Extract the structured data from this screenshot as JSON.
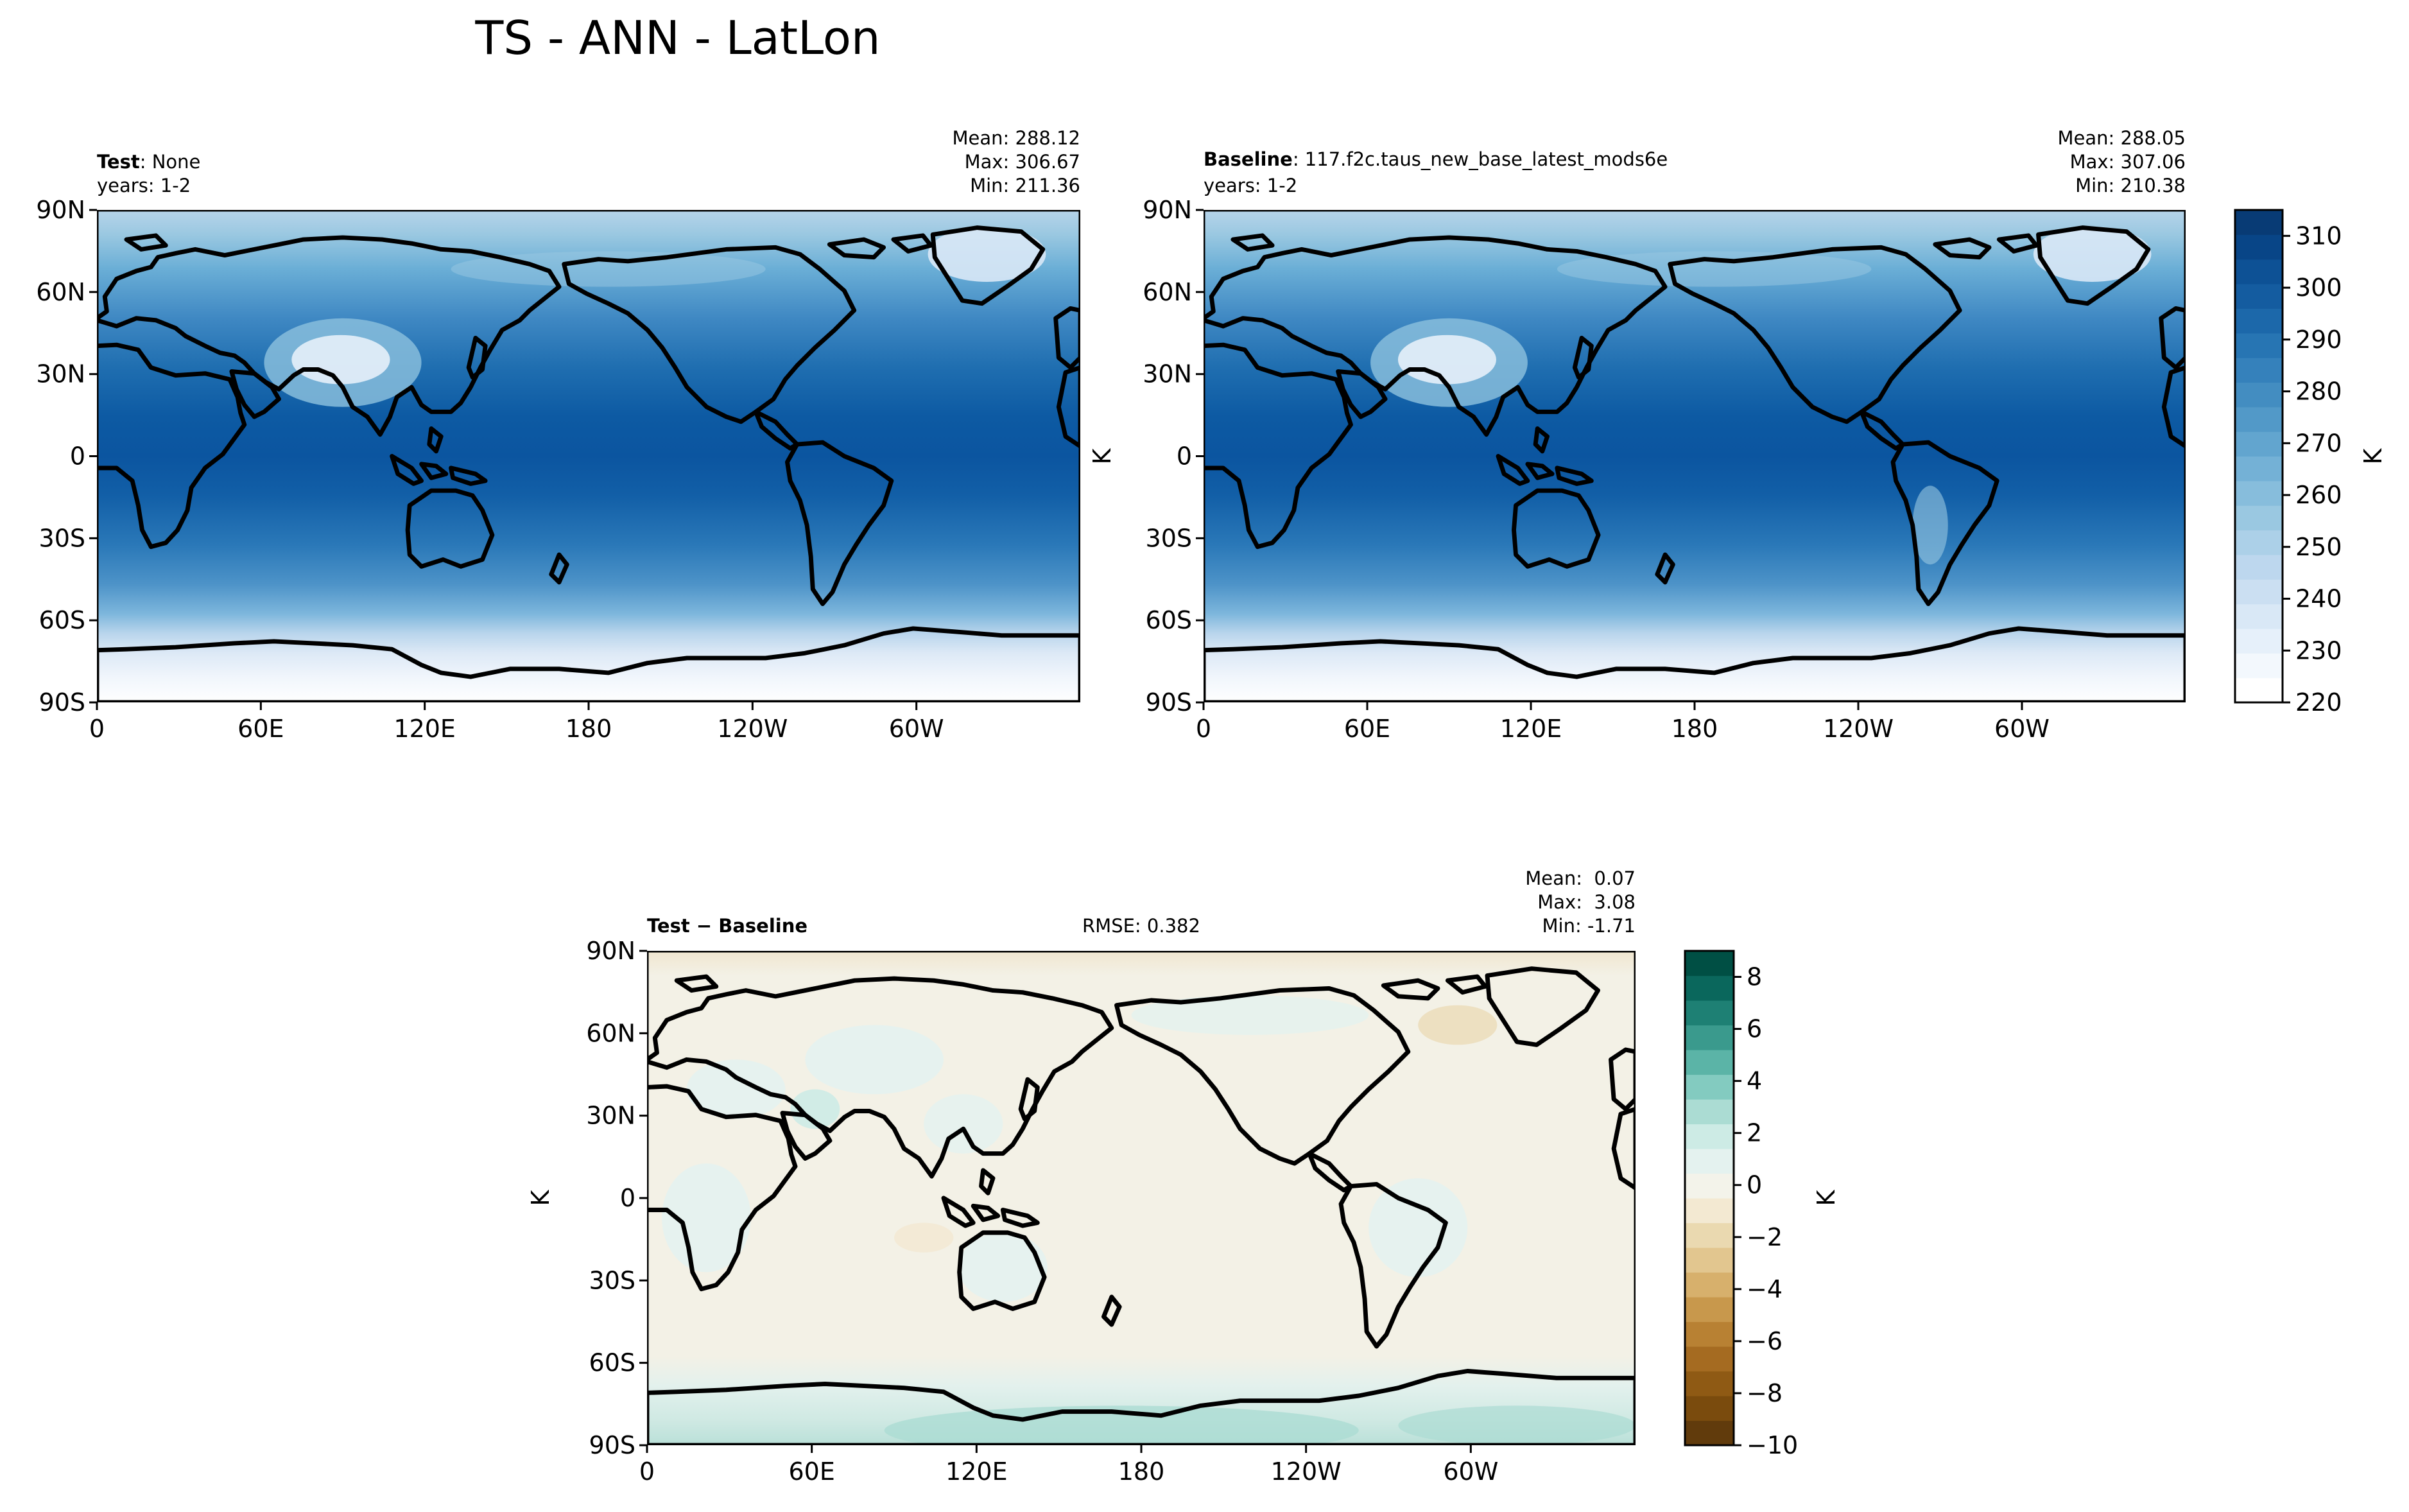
{
  "figure": {
    "suptitle": "TS - ANN - LatLon"
  },
  "chart_data": [
    {
      "type": "heatmap",
      "panel": "test",
      "title_bold": "Test",
      "title_rest": ": None",
      "subtitle": "years: 1-2",
      "stats": [
        "Mean: 288.12",
        "Max: 306.67",
        "Min: 211.36"
      ],
      "x_ticks": [
        "0",
        "60E",
        "120E",
        "180",
        "120W",
        "60W"
      ],
      "y_ticks": [
        "90N",
        "60N",
        "30N",
        "0",
        "30S",
        "60S",
        "90S"
      ],
      "xlim": [
        0,
        360
      ],
      "ylim": [
        -90,
        90
      ],
      "colormap": "Blues",
      "mean": 288.12,
      "max": 306.67,
      "min": 211.36
    },
    {
      "type": "heatmap",
      "panel": "baseline",
      "title_bold": "Baseline",
      "title_rest": ": 117.f2c.taus_new_base_latest_mods6e",
      "subtitle": "years: 1-2",
      "stats": [
        "Mean: 288.05",
        "Max: 307.06",
        "Min: 210.38"
      ],
      "x_ticks": [
        "0",
        "60E",
        "120E",
        "180",
        "120W",
        "60W"
      ],
      "y_ticks": [
        "90N",
        "60N",
        "30N",
        "0",
        "30S",
        "60S",
        "90S"
      ],
      "ylabel": "K",
      "xlim": [
        0,
        360
      ],
      "ylim": [
        -90,
        90
      ],
      "colormap": "Blues",
      "mean": 288.05,
      "max": 307.06,
      "min": 210.38
    },
    {
      "type": "heatmap",
      "panel": "difference",
      "title_bold": "Test − Baseline",
      "rmse": "RMSE: 0.382",
      "stats": [
        "Mean:  0.07",
        "Max:  3.08",
        "Min: -1.71"
      ],
      "x_ticks": [
        "0",
        "60E",
        "120E",
        "180",
        "120W",
        "60W"
      ],
      "y_ticks": [
        "90N",
        "60N",
        "30N",
        "0",
        "30S",
        "60S",
        "90S"
      ],
      "ylabel": "K",
      "xlim": [
        0,
        360
      ],
      "ylim": [
        -90,
        90
      ],
      "colormap": "BrBG",
      "mean": 0.07,
      "max": 3.08,
      "min": -1.71
    }
  ],
  "colorbars": [
    {
      "name": "absolute",
      "label": "K",
      "range": [
        220,
        315
      ],
      "ticks": [
        "310",
        "300",
        "290",
        "280",
        "270",
        "260",
        "250",
        "240",
        "230",
        "220"
      ],
      "tick_values": [
        310,
        300,
        290,
        280,
        270,
        260,
        250,
        240,
        230,
        220
      ],
      "colors_bottom_to_top": [
        "#ffffff",
        "#f3f8fd",
        "#e6f0fa",
        "#d9e8f6",
        "#cbdff2",
        "#bdd7ee",
        "#acd0e8",
        "#9ac8e1",
        "#87bddc",
        "#74b1d6",
        "#62a5cf",
        "#5299c8",
        "#438dc1",
        "#3581bb",
        "#2775b3",
        "#1c68aa",
        "#145ca0",
        "#0d5195",
        "#084587",
        "#083b75"
      ]
    },
    {
      "name": "difference",
      "label": "K",
      "range": [
        -10,
        9
      ],
      "ticks": [
        "8",
        "6",
        "4",
        "2",
        "0",
        "−2",
        "−4",
        "−6",
        "−8",
        "−10"
      ],
      "tick_values": [
        8,
        6,
        4,
        2,
        0,
        -2,
        -4,
        -6,
        -8,
        -10
      ],
      "colors_bottom_to_top": [
        "#613b0c",
        "#7a4b0d",
        "#8f5a14",
        "#a56b21",
        "#b88133",
        "#c8984c",
        "#d7b06c",
        "#e2c68f",
        "#ead9b0",
        "#f3e9d2",
        "#f3f3ea",
        "#e4f2ef",
        "#cdebe5",
        "#abdcd3",
        "#83cbc0",
        "#5bb4a7",
        "#3a9a8d",
        "#1e8074",
        "#0a675c",
        "#004f44"
      ]
    }
  ],
  "colors": {
    "land_tint_warm": "#e6eff9"
  }
}
